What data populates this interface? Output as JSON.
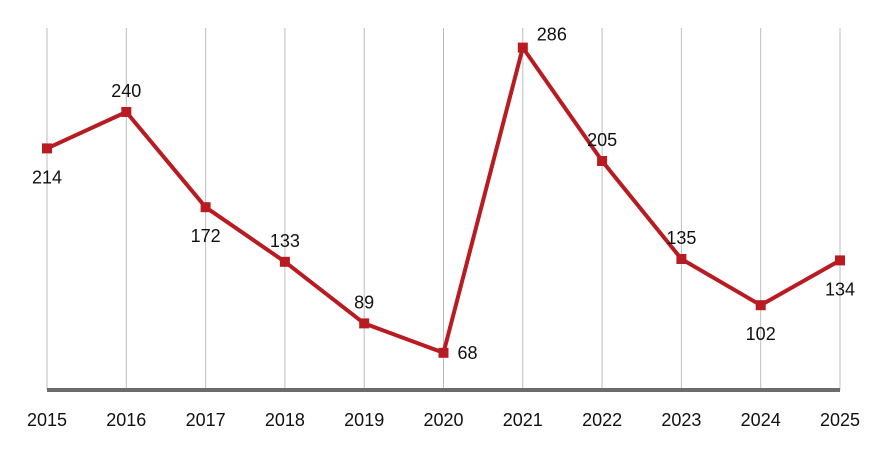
{
  "chart_data": {
    "type": "line",
    "title": "",
    "xlabel": "",
    "ylabel": "",
    "grid": "vertical",
    "legend": "none",
    "categories": [
      "2015",
      "2016",
      "2017",
      "2018",
      "2019",
      "2020",
      "2021",
      "2022",
      "2023",
      "2024",
      "2025"
    ],
    "series": [
      {
        "values": [
          214,
          240,
          172,
          133,
          89,
          68,
          286,
          205,
          135,
          102,
          134
        ],
        "color": "#b81c22",
        "marker": "square",
        "data_labels": [
          "214",
          "240",
          "172",
          "133",
          "89",
          "68",
          "286",
          "205",
          "135",
          "102",
          "134"
        ],
        "label_positions": [
          "below",
          "above",
          "below",
          "above",
          "above",
          "right",
          "right",
          "above",
          "above",
          "below",
          "below"
        ]
      }
    ],
    "ylim": [
      0,
      300
    ]
  }
}
